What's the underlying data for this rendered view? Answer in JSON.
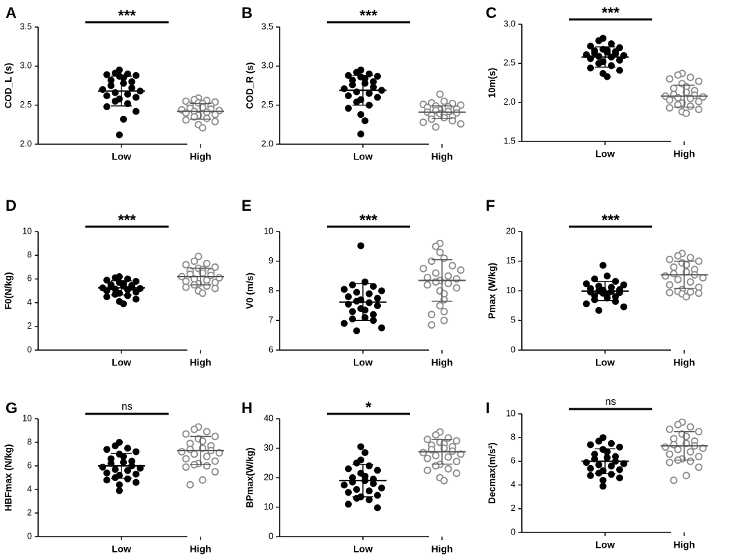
{
  "chart_data": [
    {
      "type": "scatter",
      "panel": "A",
      "ylabel": "COD_L (s)",
      "categories": [
        "Low",
        "High"
      ],
      "ylim": [
        2.0,
        3.5
      ],
      "yticks": [
        "2.0",
        "2.5",
        "3.0",
        "3.5"
      ],
      "significance": "***",
      "series": [
        {
          "name": "Low",
          "mean": 2.68,
          "sd": 0.19,
          "values": [
            2.95,
            2.91,
            2.9,
            2.89,
            2.88,
            2.87,
            2.85,
            2.82,
            2.8,
            2.78,
            2.75,
            2.72,
            2.7,
            2.68,
            2.66,
            2.64,
            2.62,
            2.6,
            2.58,
            2.55,
            2.52,
            2.48,
            2.42,
            2.32,
            2.12
          ]
        },
        {
          "name": "High",
          "mean": 2.42,
          "sd": 0.1,
          "values": [
            2.59,
            2.57,
            2.56,
            2.55,
            2.54,
            2.53,
            2.52,
            2.5,
            2.49,
            2.47,
            2.46,
            2.45,
            2.44,
            2.43,
            2.42,
            2.41,
            2.4,
            2.38,
            2.37,
            2.35,
            2.33,
            2.31,
            2.29,
            2.25,
            2.21
          ]
        }
      ]
    },
    {
      "type": "scatter",
      "panel": "B",
      "ylabel": "COD_R (s)",
      "categories": [
        "Low",
        "High"
      ],
      "ylim": [
        2.0,
        3.5
      ],
      "yticks": [
        "2.0",
        "2.5",
        "3.0",
        "3.5"
      ],
      "significance": "***",
      "series": [
        {
          "name": "Low",
          "mean": 2.69,
          "sd": 0.19,
          "values": [
            2.95,
            2.92,
            2.9,
            2.88,
            2.87,
            2.86,
            2.84,
            2.82,
            2.8,
            2.78,
            2.76,
            2.73,
            2.71,
            2.69,
            2.67,
            2.65,
            2.62,
            2.6,
            2.57,
            2.54,
            2.5,
            2.46,
            2.38,
            2.3,
            2.13
          ]
        },
        {
          "name": "High",
          "mean": 2.41,
          "sd": 0.08,
          "values": [
            2.64,
            2.55,
            2.53,
            2.52,
            2.51,
            2.5,
            2.49,
            2.48,
            2.47,
            2.45,
            2.44,
            2.43,
            2.42,
            2.41,
            2.4,
            2.39,
            2.38,
            2.37,
            2.35,
            2.34,
            2.32,
            2.3,
            2.28,
            2.26,
            2.22
          ]
        }
      ]
    },
    {
      "type": "scatter",
      "panel": "C",
      "ylabel": "10m(s)",
      "categories": [
        "Low",
        "High"
      ],
      "ylim": [
        1.5,
        3.0
      ],
      "yticks": [
        "1.5",
        "2.0",
        "2.5",
        "3.0"
      ],
      "significance": "***",
      "series": [
        {
          "name": "Low",
          "mean": 2.58,
          "sd": 0.13,
          "values": [
            2.82,
            2.79,
            2.75,
            2.72,
            2.7,
            2.68,
            2.67,
            2.66,
            2.65,
            2.64,
            2.63,
            2.62,
            2.61,
            2.6,
            2.59,
            2.58,
            2.56,
            2.54,
            2.52,
            2.5,
            2.47,
            2.44,
            2.41,
            2.37,
            2.33
          ]
        },
        {
          "name": "High",
          "mean": 2.08,
          "sd": 0.14,
          "values": [
            2.37,
            2.35,
            2.32,
            2.3,
            2.27,
            2.24,
            2.2,
            2.18,
            2.15,
            2.13,
            2.1,
            2.09,
            2.08,
            2.07,
            2.06,
            2.05,
            2.03,
            2.01,
            1.99,
            1.97,
            1.95,
            1.93,
            1.91,
            1.88,
            1.86
          ]
        }
      ]
    },
    {
      "type": "scatter",
      "panel": "D",
      "ylabel": "F0(N/kg)",
      "categories": [
        "Low",
        "High"
      ],
      "ylim": [
        0,
        10
      ],
      "yticks": [
        "0",
        "2",
        "4",
        "6",
        "8",
        "10"
      ],
      "significance": "***",
      "series": [
        {
          "name": "Low",
          "mean": 5.25,
          "sd": 0.6,
          "values": [
            6.2,
            6.1,
            6.0,
            5.9,
            5.8,
            5.7,
            5.6,
            5.5,
            5.45,
            5.4,
            5.35,
            5.3,
            5.25,
            5.2,
            5.15,
            5.1,
            5.0,
            4.9,
            4.8,
            4.7,
            4.6,
            4.5,
            4.3,
            4.1,
            3.9
          ]
        },
        {
          "name": "High",
          "mean": 6.2,
          "sd": 0.7,
          "values": [
            7.9,
            7.5,
            7.3,
            7.2,
            7.0,
            6.9,
            6.8,
            6.7,
            6.6,
            6.5,
            6.4,
            6.3,
            6.2,
            6.1,
            6.0,
            5.9,
            5.8,
            5.7,
            5.6,
            5.5,
            5.4,
            5.3,
            5.2,
            5.0,
            4.8
          ]
        }
      ]
    },
    {
      "type": "scatter",
      "panel": "E",
      "ylabel": "V0 (m/s)",
      "categories": [
        "Low",
        "High"
      ],
      "ylim": [
        6,
        10
      ],
      "yticks": [
        "6",
        "7",
        "8",
        "9",
        "10"
      ],
      "significance": "***",
      "series": [
        {
          "name": "Low",
          "mean": 7.62,
          "sd": 0.62,
          "values": [
            9.52,
            8.3,
            8.2,
            8.15,
            8.05,
            8.0,
            7.95,
            7.9,
            7.8,
            7.75,
            7.7,
            7.65,
            7.6,
            7.55,
            7.5,
            7.4,
            7.35,
            7.3,
            7.2,
            7.1,
            7.05,
            7.0,
            6.9,
            6.75,
            6.65
          ]
        },
        {
          "name": "High",
          "mean": 8.35,
          "sd": 0.7,
          "values": [
            9.6,
            9.5,
            9.3,
            9.1,
            9.0,
            8.85,
            8.75,
            8.7,
            8.6,
            8.5,
            8.45,
            8.4,
            8.35,
            8.3,
            8.25,
            8.2,
            8.1,
            8.0,
            7.9,
            7.7,
            7.5,
            7.3,
            7.2,
            7.0,
            6.85
          ]
        }
      ]
    },
    {
      "type": "scatter",
      "panel": "F",
      "ylabel": "Pmax (W/kg)",
      "categories": [
        "Low",
        "High"
      ],
      "ylim": [
        0,
        20
      ],
      "yticks": [
        "0",
        "5",
        "10",
        "15",
        "20"
      ],
      "significance": "***",
      "series": [
        {
          "name": "Low",
          "mean": 9.95,
          "sd": 1.6,
          "values": [
            14.3,
            12.5,
            12.0,
            11.6,
            11.2,
            11.0,
            10.8,
            10.6,
            10.4,
            10.2,
            10.1,
            10.0,
            9.9,
            9.8,
            9.7,
            9.6,
            9.4,
            9.2,
            9.0,
            8.8,
            8.5,
            8.2,
            7.8,
            7.3,
            6.7
          ]
        },
        {
          "name": "High",
          "mean": 12.7,
          "sd": 2.3,
          "values": [
            16.3,
            15.9,
            15.6,
            15.3,
            15.0,
            14.7,
            14.4,
            14.0,
            13.6,
            13.2,
            12.9,
            12.7,
            12.5,
            12.2,
            11.9,
            11.5,
            11.0,
            10.6,
            10.2,
            9.9,
            9.8,
            9.7,
            9.6,
            9.5,
            9.0
          ]
        }
      ]
    },
    {
      "type": "scatter",
      "panel": "G",
      "ylabel": "HBFmax (N/kg)",
      "categories": [
        "Low",
        "High"
      ],
      "ylim": [
        0,
        10
      ],
      "yticks": [
        "0",
        "2",
        "4",
        "6",
        "8",
        "10"
      ],
      "significance": "ns",
      "series": [
        {
          "name": "Low",
          "mean": 6.0,
          "sd": 1.05,
          "values": [
            8.0,
            7.7,
            7.5,
            7.4,
            7.2,
            7.0,
            6.8,
            6.6,
            6.4,
            6.3,
            6.2,
            6.0,
            5.9,
            5.8,
            5.7,
            5.6,
            5.4,
            5.3,
            5.2,
            5.0,
            4.9,
            4.8,
            4.6,
            4.4,
            3.9
          ]
        },
        {
          "name": "High",
          "mean": 7.3,
          "sd": 1.2,
          "values": [
            9.3,
            9.1,
            8.9,
            8.7,
            8.5,
            8.3,
            8.1,
            7.9,
            7.7,
            7.5,
            7.4,
            7.3,
            7.2,
            7.1,
            7.0,
            6.8,
            6.6,
            6.4,
            6.2,
            6.1,
            6.0,
            5.9,
            5.5,
            4.8,
            4.4
          ]
        }
      ]
    },
    {
      "type": "scatter",
      "panel": "H",
      "ylabel": "BPmax(W/kg)",
      "categories": [
        "Low",
        "High"
      ],
      "ylim": [
        0,
        40
      ],
      "yticks": [
        "0",
        "10",
        "20",
        "30",
        "40"
      ],
      "significance": "*",
      "series": [
        {
          "name": "Low",
          "mean": 19.0,
          "sd": 5.5,
          "values": [
            30.5,
            28.5,
            26.0,
            25.0,
            24.0,
            23.0,
            22.5,
            21.5,
            20.5,
            20.0,
            19.5,
            19.0,
            18.5,
            18.0,
            17.5,
            16.5,
            16.0,
            15.5,
            15.0,
            14.0,
            13.5,
            13.0,
            12.5,
            11.0,
            9.8
          ]
        },
        {
          "name": "High",
          "mean": 28.8,
          "sd": 4.2,
          "values": [
            35.5,
            34.5,
            33.5,
            33.0,
            32.5,
            32.0,
            31.5,
            31.0,
            30.5,
            30.0,
            29.5,
            29.0,
            28.5,
            28.0,
            27.5,
            27.0,
            26.5,
            25.5,
            24.5,
            24.0,
            23.0,
            22.5,
            21.5,
            20.0,
            19.0
          ]
        }
      ]
    },
    {
      "type": "scatter",
      "panel": "I",
      "ylabel": "Decmax(m/s²)",
      "categories": [
        "Low",
        "High"
      ],
      "ylim": [
        0,
        10
      ],
      "yticks": [
        "0",
        "2",
        "4",
        "6",
        "8",
        "10"
      ],
      "significance": "ns",
      "series": [
        {
          "name": "Low",
          "mean": 6.0,
          "sd": 1.05,
          "values": [
            8.0,
            7.7,
            7.5,
            7.4,
            7.2,
            7.0,
            6.8,
            6.6,
            6.4,
            6.3,
            6.2,
            6.0,
            5.9,
            5.8,
            5.7,
            5.6,
            5.4,
            5.3,
            5.2,
            5.0,
            4.9,
            4.8,
            4.6,
            4.4,
            3.9
          ]
        },
        {
          "name": "High",
          "mean": 7.3,
          "sd": 1.2,
          "values": [
            9.3,
            9.1,
            8.9,
            8.7,
            8.5,
            8.3,
            8.1,
            7.9,
            7.7,
            7.5,
            7.4,
            7.3,
            7.2,
            7.1,
            7.0,
            6.8,
            6.6,
            6.4,
            6.2,
            6.1,
            6.0,
            5.9,
            5.5,
            4.8,
            4.4
          ]
        }
      ]
    }
  ]
}
